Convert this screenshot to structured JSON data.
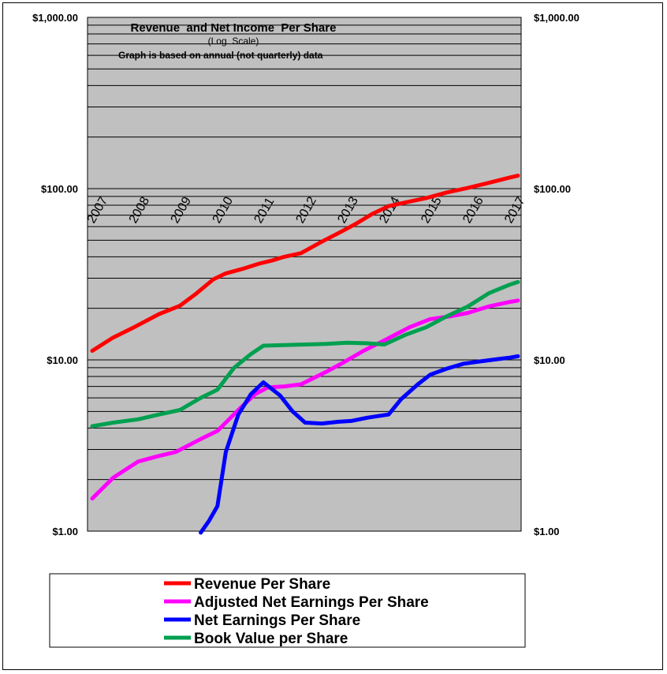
{
  "chart_data": {
    "type": "line",
    "title": "Revenue  and Net Income  Per Share",
    "subtitle": "(Log  Scale)",
    "note": "Graph is based on annual (not quarterly) data",
    "y_scale": "log",
    "ylim": [
      1,
      1000
    ],
    "y_ticks": [
      {
        "value": 1,
        "label": "$1.00"
      },
      {
        "value": 10,
        "label": "$10.00"
      },
      {
        "value": 100,
        "label": "$100.00"
      },
      {
        "value": 1000,
        "label": "$1,000.00"
      }
    ],
    "x_ticks": [
      "2007",
      "2008",
      "2009",
      "2010",
      "2011",
      "2012",
      "2013",
      "2014",
      "2015",
      "2016",
      "2017"
    ],
    "xlim": [
      2007,
      2017.2
    ],
    "grid": true,
    "legend_position": "bottom",
    "series": [
      {
        "name": "Revenue Per Share",
        "color": "#ff0000",
        "points": [
          [
            2007.0,
            11.3
          ],
          [
            2007.5,
            13.5
          ],
          [
            2008.0,
            15.5
          ],
          [
            2008.6,
            18.5
          ],
          [
            2009.1,
            20.7
          ],
          [
            2009.5,
            24.5
          ],
          [
            2009.9,
            29.5
          ],
          [
            2010.2,
            32.0
          ],
          [
            2010.6,
            34.0
          ],
          [
            2011.0,
            36.5
          ],
          [
            2011.3,
            38.0
          ],
          [
            2011.6,
            40.0
          ],
          [
            2012.0,
            42.0
          ],
          [
            2012.5,
            49.0
          ],
          [
            2012.9,
            55.0
          ],
          [
            2013.3,
            62.0
          ],
          [
            2013.7,
            71.0
          ],
          [
            2014.1,
            79.0
          ],
          [
            2014.6,
            84.0
          ],
          [
            2015.0,
            88.0
          ],
          [
            2015.5,
            95.0
          ],
          [
            2016.0,
            101.0
          ],
          [
            2016.5,
            108.0
          ],
          [
            2017.0,
            116.0
          ],
          [
            2017.2,
            119.0
          ]
        ]
      },
      {
        "name": "Adjusted Net Earnings Per Share",
        "color": "#ff00ff",
        "points": [
          [
            2007.0,
            1.55
          ],
          [
            2007.5,
            2.05
          ],
          [
            2008.1,
            2.55
          ],
          [
            2008.6,
            2.75
          ],
          [
            2009.0,
            2.9
          ],
          [
            2009.6,
            3.45
          ],
          [
            2010.0,
            3.85
          ],
          [
            2010.5,
            5.1
          ],
          [
            2010.9,
            6.3
          ],
          [
            2011.2,
            6.9
          ],
          [
            2011.6,
            7.0
          ],
          [
            2012.0,
            7.2
          ],
          [
            2012.6,
            8.5
          ],
          [
            2013.0,
            9.6
          ],
          [
            2013.5,
            11.3
          ],
          [
            2014.0,
            13.0
          ],
          [
            2014.6,
            15.5
          ],
          [
            2015.1,
            17.3
          ],
          [
            2015.6,
            18.0
          ],
          [
            2016.0,
            18.8
          ],
          [
            2016.5,
            20.5
          ],
          [
            2017.0,
            21.8
          ],
          [
            2017.2,
            22.2
          ]
        ]
      },
      {
        "name": "Net Earnings Per Share",
        "color": "#0000ff",
        "points": [
          [
            2009.6,
            0.98
          ],
          [
            2009.8,
            1.15
          ],
          [
            2010.0,
            1.4
          ],
          [
            2010.2,
            2.9
          ],
          [
            2010.5,
            4.8
          ],
          [
            2010.8,
            6.3
          ],
          [
            2011.1,
            7.4
          ],
          [
            2011.5,
            6.2
          ],
          [
            2011.8,
            5.0
          ],
          [
            2012.1,
            4.3
          ],
          [
            2012.5,
            4.25
          ],
          [
            2012.9,
            4.35
          ],
          [
            2013.2,
            4.4
          ],
          [
            2013.6,
            4.6
          ],
          [
            2014.1,
            4.8
          ],
          [
            2014.4,
            5.9
          ],
          [
            2014.8,
            7.2
          ],
          [
            2015.1,
            8.2
          ],
          [
            2015.5,
            8.9
          ],
          [
            2015.9,
            9.5
          ],
          [
            2016.3,
            9.8
          ],
          [
            2016.7,
            10.1
          ],
          [
            2017.0,
            10.3
          ],
          [
            2017.2,
            10.5
          ]
        ]
      },
      {
        "name": "Book Value per Share",
        "color": "#00a050",
        "points": [
          [
            2007.0,
            4.1
          ],
          [
            2007.5,
            4.3
          ],
          [
            2008.1,
            4.5
          ],
          [
            2008.6,
            4.8
          ],
          [
            2009.1,
            5.1
          ],
          [
            2009.6,
            6.0
          ],
          [
            2010.0,
            6.7
          ],
          [
            2010.4,
            9.0
          ],
          [
            2010.8,
            10.8
          ],
          [
            2011.1,
            12.1
          ],
          [
            2011.6,
            12.2
          ],
          [
            2012.1,
            12.3
          ],
          [
            2012.6,
            12.4
          ],
          [
            2013.1,
            12.6
          ],
          [
            2013.6,
            12.5
          ],
          [
            2014.0,
            12.3
          ],
          [
            2014.5,
            14.0
          ],
          [
            2015.0,
            15.5
          ],
          [
            2015.5,
            18.0
          ],
          [
            2016.0,
            20.5
          ],
          [
            2016.5,
            24.5
          ],
          [
            2017.0,
            27.5
          ],
          [
            2017.2,
            28.5
          ]
        ]
      }
    ]
  }
}
